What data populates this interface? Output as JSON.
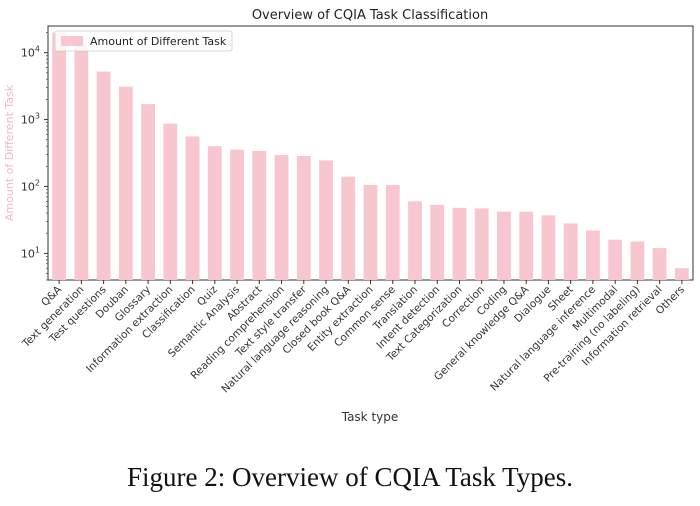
{
  "chart_data": {
    "type": "bar",
    "title": "Overview of CQIA Task Classification",
    "xlabel": "Task type",
    "ylabel": "Amount of Different Task",
    "yscale": "log",
    "ylim": [
      4,
      25000
    ],
    "yticks": [
      10,
      100,
      1000,
      10000
    ],
    "ytick_labels": [
      {
        "base": "10",
        "exp": "1"
      },
      {
        "base": "10",
        "exp": "2"
      },
      {
        "base": "10",
        "exp": "3"
      },
      {
        "base": "10",
        "exp": "4"
      }
    ],
    "legend": {
      "label": "Amount of Different Task",
      "position": "top-left"
    },
    "bar_color": "#f7c6cf",
    "categories": [
      "Q&A",
      "Text generation",
      "Test questions",
      "Douban",
      "Glossary",
      "Information extraction",
      "Classification",
      "Quiz",
      "Semantic Analysis",
      "Abstract",
      "Reading comprehension",
      "Text style transfer",
      "Natural language reasoning",
      "Closed book Q&A",
      "Entity extraction",
      "Common sense",
      "Translation",
      "Intent detection",
      "Text Categorization",
      "Correction",
      "Coding",
      "General knowledge Q&A",
      "Dialogue",
      "Sheet",
      "Natural language inference",
      "Multimodal",
      "Pre-training (no labeling)",
      "Information retrieval",
      "Others"
    ],
    "values": [
      20000,
      14000,
      5200,
      3100,
      1700,
      870,
      560,
      400,
      355,
      340,
      295,
      285,
      245,
      140,
      105,
      105,
      60,
      53,
      48,
      47,
      42,
      42,
      37,
      28,
      22,
      16,
      15,
      12,
      6
    ]
  },
  "caption": "Figure 2: Overview of CQIA Task Types."
}
